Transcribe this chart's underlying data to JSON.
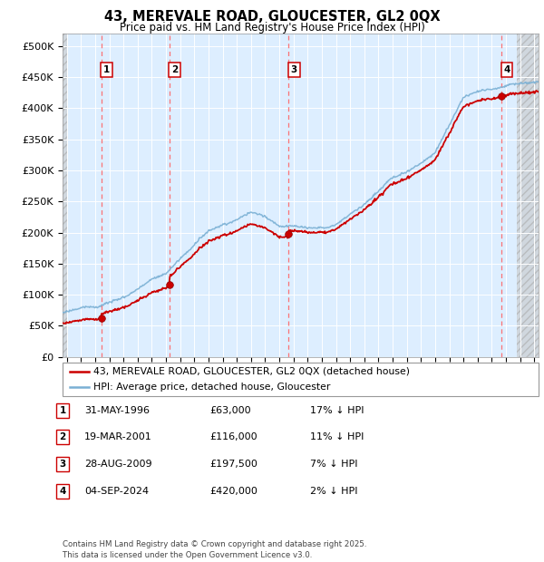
{
  "title": "43, MEREVALE ROAD, GLOUCESTER, GL2 0QX",
  "subtitle": "Price paid vs. HM Land Registry's House Price Index (HPI)",
  "ytick_values": [
    0,
    50000,
    100000,
    150000,
    200000,
    250000,
    300000,
    350000,
    400000,
    450000,
    500000
  ],
  "ylim": [
    0,
    520000
  ],
  "xlim_start": 1993.7,
  "xlim_end": 2027.3,
  "hatch_end": 2025.75,
  "sale_dates": [
    1996.42,
    2001.22,
    2009.66,
    2024.68
  ],
  "sale_prices": [
    63000,
    116000,
    197500,
    420000
  ],
  "sale_labels": [
    "1",
    "2",
    "3",
    "4"
  ],
  "sale_color": "#cc0000",
  "hpi_color": "#7ab0d4",
  "legend_sale_label": "43, MEREVALE ROAD, GLOUCESTER, GL2 0QX (detached house)",
  "legend_hpi_label": "HPI: Average price, detached house, Gloucester",
  "table_rows": [
    {
      "num": "1",
      "date": "31-MAY-1996",
      "price": "£63,000",
      "hpi": "17% ↓ HPI"
    },
    {
      "num": "2",
      "date": "19-MAR-2001",
      "price": "£116,000",
      "hpi": "11% ↓ HPI"
    },
    {
      "num": "3",
      "date": "28-AUG-2009",
      "price": "£197,500",
      "hpi": "7% ↓ HPI"
    },
    {
      "num": "4",
      "date": "04-SEP-2024",
      "price": "£420,000",
      "hpi": "2% ↓ HPI"
    }
  ],
  "footer": "Contains HM Land Registry data © Crown copyright and database right 2025.\nThis data is licensed under the Open Government Licence v3.0.",
  "background_color": "#ffffff",
  "plot_bg_color": "#ddeeff",
  "grid_color": "#ffffff",
  "dashed_vline_color": "#ff6666"
}
